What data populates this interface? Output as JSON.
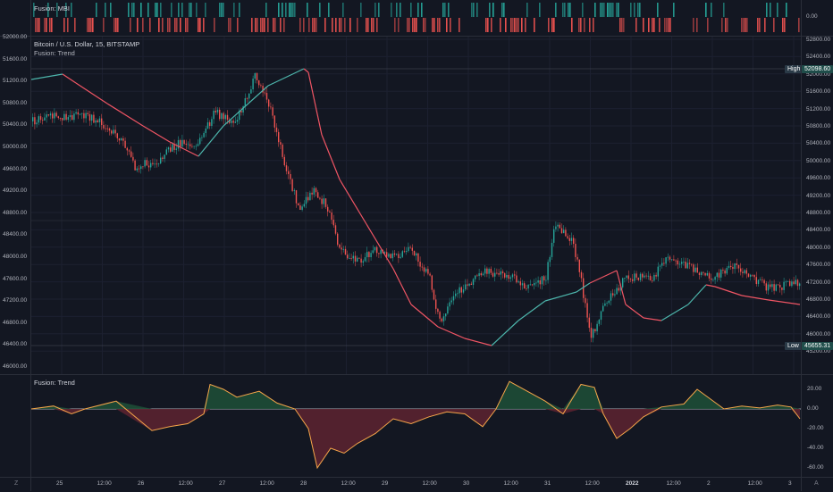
{
  "mbi_pane": {
    "title": "Fusion: MBI",
    "axis_label": "0.00",
    "colors": {
      "bull": "#26a69a",
      "bear": "#ef5350"
    }
  },
  "price_pane": {
    "symbol_title": "Bitcoin / U.S. Dollar, 15, BITSTAMP",
    "indicator_title": "Fusion: Trend",
    "left_axis_ticks": [
      "52000.00",
      "51600.00",
      "51200.00",
      "50800.00",
      "50400.00",
      "50000.00",
      "49600.00",
      "49200.00",
      "48800.00",
      "48400.00",
      "48000.00",
      "47600.00",
      "47200.00",
      "46800.00",
      "46400.00",
      "46000.00"
    ],
    "right_axis_ticks": [
      "52800.00",
      "52400.00",
      "52000.00",
      "51600.00",
      "51200.00",
      "50800.00",
      "50400.00",
      "50000.00",
      "49600.00",
      "49200.00",
      "48800.00",
      "48400.00",
      "48000.00",
      "47600.00",
      "47200.00",
      "46800.00",
      "46400.00",
      "46000.00",
      "45200.00"
    ],
    "high": {
      "label": "High",
      "value": "52098.60"
    },
    "low": {
      "label": "Low",
      "value": "45655.31"
    },
    "colors": {
      "up": "#26a69a",
      "down": "#ef5350",
      "trend_bull": "#4db6ac",
      "trend_bear": "#f05564"
    }
  },
  "osc_pane": {
    "title": "Fusion: Trend",
    "right_axis_ticks": [
      "20.00",
      "0.00",
      "-20.00",
      "-40.00",
      "-60.00"
    ],
    "colors": {
      "line": "#f7a64a",
      "bull_fill": "#1e4d36",
      "bear_fill": "#5a2230",
      "zero": "#d1d4dc"
    }
  },
  "time_axis": {
    "labels": [
      "25",
      "12:00",
      "26",
      "12:00",
      "27",
      "12:00",
      "28",
      "12:00",
      "29",
      "12:00",
      "30",
      "12:00",
      "31",
      "12:00",
      "2022",
      "12:00",
      "2",
      "12:00",
      "3"
    ]
  },
  "corner": {
    "left": "Z",
    "right": "A"
  }
}
